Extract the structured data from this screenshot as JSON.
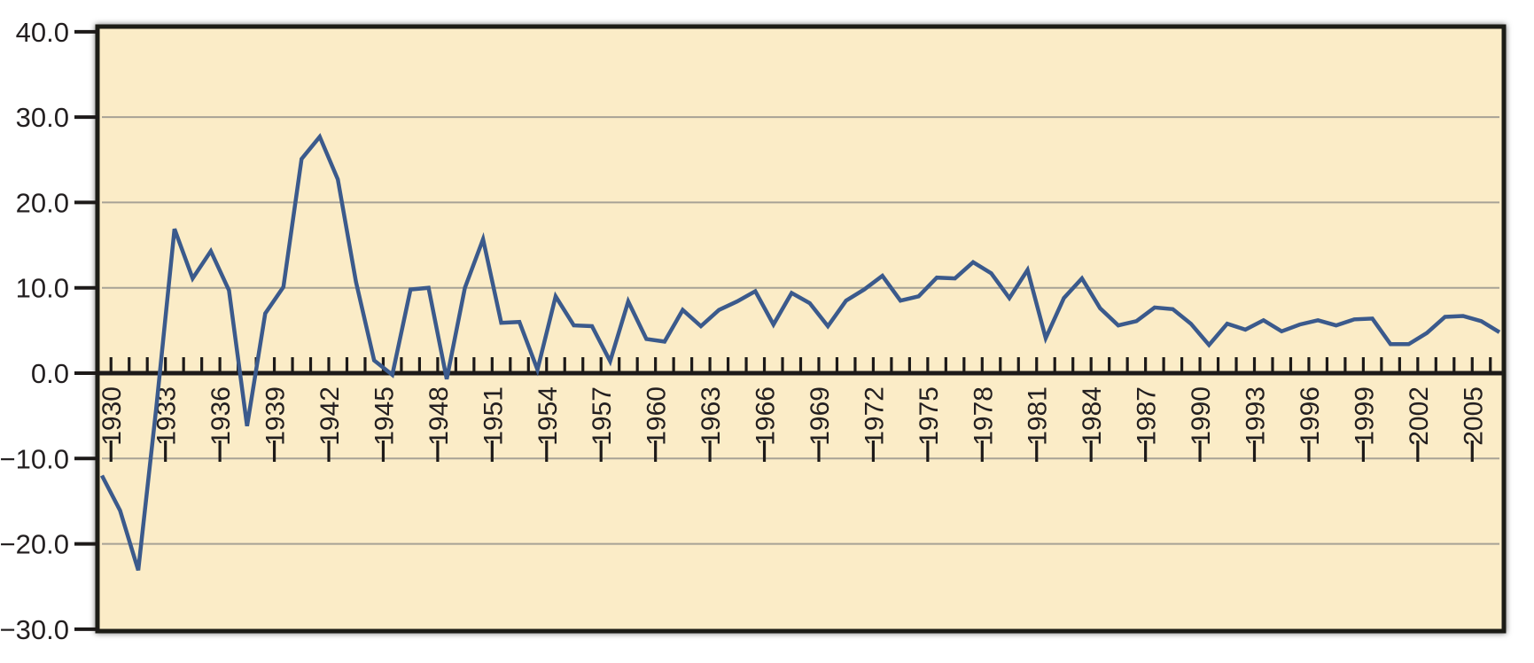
{
  "chart_data": {
    "type": "line",
    "title": "",
    "x": [
      1930,
      1931,
      1932,
      1933,
      1934,
      1935,
      1936,
      1937,
      1938,
      1939,
      1940,
      1941,
      1942,
      1943,
      1944,
      1945,
      1946,
      1947,
      1948,
      1949,
      1950,
      1951,
      1952,
      1953,
      1954,
      1955,
      1956,
      1957,
      1958,
      1959,
      1960,
      1961,
      1962,
      1963,
      1964,
      1965,
      1966,
      1967,
      1968,
      1969,
      1970,
      1971,
      1972,
      1973,
      1974,
      1975,
      1976,
      1977,
      1978,
      1979,
      1980,
      1981,
      1982,
      1983,
      1984,
      1985,
      1986,
      1987,
      1988,
      1989,
      1990,
      1991,
      1992,
      1993,
      1994,
      1995,
      1996,
      1997,
      1998,
      1999,
      2000,
      2001,
      2002,
      2003,
      2004,
      2005,
      2006,
      2007
    ],
    "values": [
      -12.0,
      -16.1,
      -23.1,
      -4.0,
      16.9,
      11.1,
      14.3,
      9.7,
      -6.2,
      7.0,
      10.1,
      25.1,
      27.7,
      22.7,
      10.7,
      1.5,
      -0.2,
      9.8,
      10.0,
      -0.7,
      10.0,
      15.7,
      5.9,
      6.0,
      0.4,
      9.0,
      5.6,
      5.5,
      1.4,
      8.4,
      4.0,
      3.7,
      7.4,
      5.5,
      7.4,
      8.4,
      9.6,
      5.7,
      9.4,
      8.2,
      5.5,
      8.5,
      9.8,
      11.4,
      8.5,
      9.0,
      11.2,
      11.1,
      13.0,
      11.7,
      8.8,
      12.1,
      4.1,
      8.8,
      11.1,
      7.6,
      5.6,
      6.1,
      7.7,
      7.5,
      5.8,
      3.3,
      5.8,
      5.1,
      6.2,
      4.9,
      5.7,
      6.2,
      5.6,
      6.3,
      6.4,
      3.4,
      3.4,
      4.7,
      6.6,
      6.7,
      6.1,
      4.8
    ],
    "xlabel": "",
    "ylabel": "",
    "ylim": [
      -30,
      40
    ],
    "y_ticks": [
      40,
      30,
      20,
      10,
      0,
      -10,
      -20,
      -30
    ],
    "y_tick_labels": [
      "40.0",
      "30.0",
      "20.0",
      "10.0",
      "0.0",
      "−10.0",
      "−20.0",
      "−30.0"
    ],
    "gridline_values": [
      30,
      20,
      10,
      -10,
      -20
    ],
    "x_label_years": [
      1930,
      1933,
      1936,
      1939,
      1942,
      1945,
      1948,
      1951,
      1954,
      1957,
      1960,
      1963,
      1966,
      1969,
      1972,
      1975,
      1978,
      1981,
      1984,
      1987,
      1990,
      1993,
      1996,
      1999,
      2002,
      2005
    ],
    "x_tick_every_years": 1,
    "grid": "horizontal",
    "legend": "none",
    "colors": {
      "plot_background": "#fbecc7",
      "outer_background": "#ffffff",
      "line": "#3b5a8c",
      "gridline": "#a7a295",
      "frame_and_axis": "#1d1a19",
      "tick": "#1d1a19",
      "label_text": "#231f20"
    }
  }
}
